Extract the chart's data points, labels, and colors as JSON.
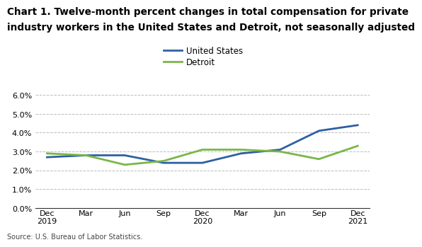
{
  "title_line1": "Chart 1. Twelve-month percent changes in total compensation for private",
  "title_line2": "industry workers in the United States and Detroit, not seasonally adjusted",
  "source": "Source: U.S. Bureau of Labor Statistics.",
  "x_labels": [
    "Dec\n2019",
    "Mar",
    "Jun",
    "Sep",
    "Dec\n2020",
    "Mar",
    "Jun",
    "Sep",
    "Dec\n2021"
  ],
  "us_values": [
    0.027,
    0.028,
    0.028,
    0.024,
    0.024,
    0.029,
    0.031,
    0.041,
    0.044
  ],
  "detroit_values": [
    0.029,
    0.028,
    0.023,
    0.025,
    0.031,
    0.031,
    0.03,
    0.026,
    0.033
  ],
  "us_color": "#2E5FA3",
  "detroit_color": "#7AB648",
  "us_label": "United States",
  "detroit_label": "Detroit",
  "ylim": [
    0.0,
    0.065
  ],
  "yticks": [
    0.0,
    0.01,
    0.02,
    0.03,
    0.04,
    0.05,
    0.06
  ],
  "grid_color": "#BBBBBB",
  "background_color": "#FFFFFF",
  "line_width": 2.0,
  "title_fontsize": 9.8,
  "legend_fontsize": 8.5,
  "tick_fontsize": 8.0,
  "source_fontsize": 7.0
}
